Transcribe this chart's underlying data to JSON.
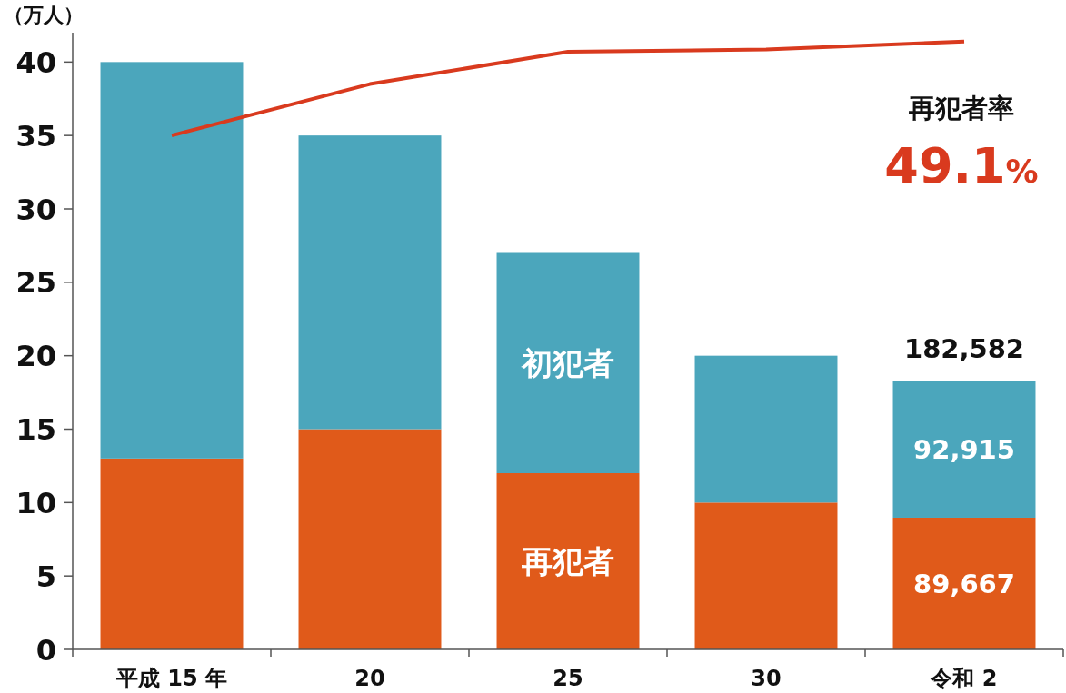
{
  "chart_data": {
    "type": "bar",
    "stacked": true,
    "ylabel": "（万人）",
    "categories": [
      "平成 15 年",
      "20",
      "25",
      "30",
      "令和 2"
    ],
    "ylim": [
      0,
      42
    ],
    "yticks": [
      0,
      5,
      10,
      15,
      20,
      25,
      30,
      35,
      40
    ],
    "grid": false,
    "legend": false,
    "series": [
      {
        "name": "再犯者",
        "color": "#e05a1a",
        "values": [
          13,
          15,
          12,
          10,
          8.97
        ]
      },
      {
        "name": "初犯者",
        "color": "#4ba6bc",
        "values": [
          27,
          20,
          15,
          10,
          9.29
        ]
      },
      {
        "name": "再犯者率",
        "type": "line",
        "color": "#d93a1e",
        "values": [
          35,
          38.5,
          40.7,
          40.85,
          41.4
        ]
      }
    ],
    "annotations": [
      "49.1%",
      "89,667",
      "92,915",
      "182,582"
    ]
  }
}
